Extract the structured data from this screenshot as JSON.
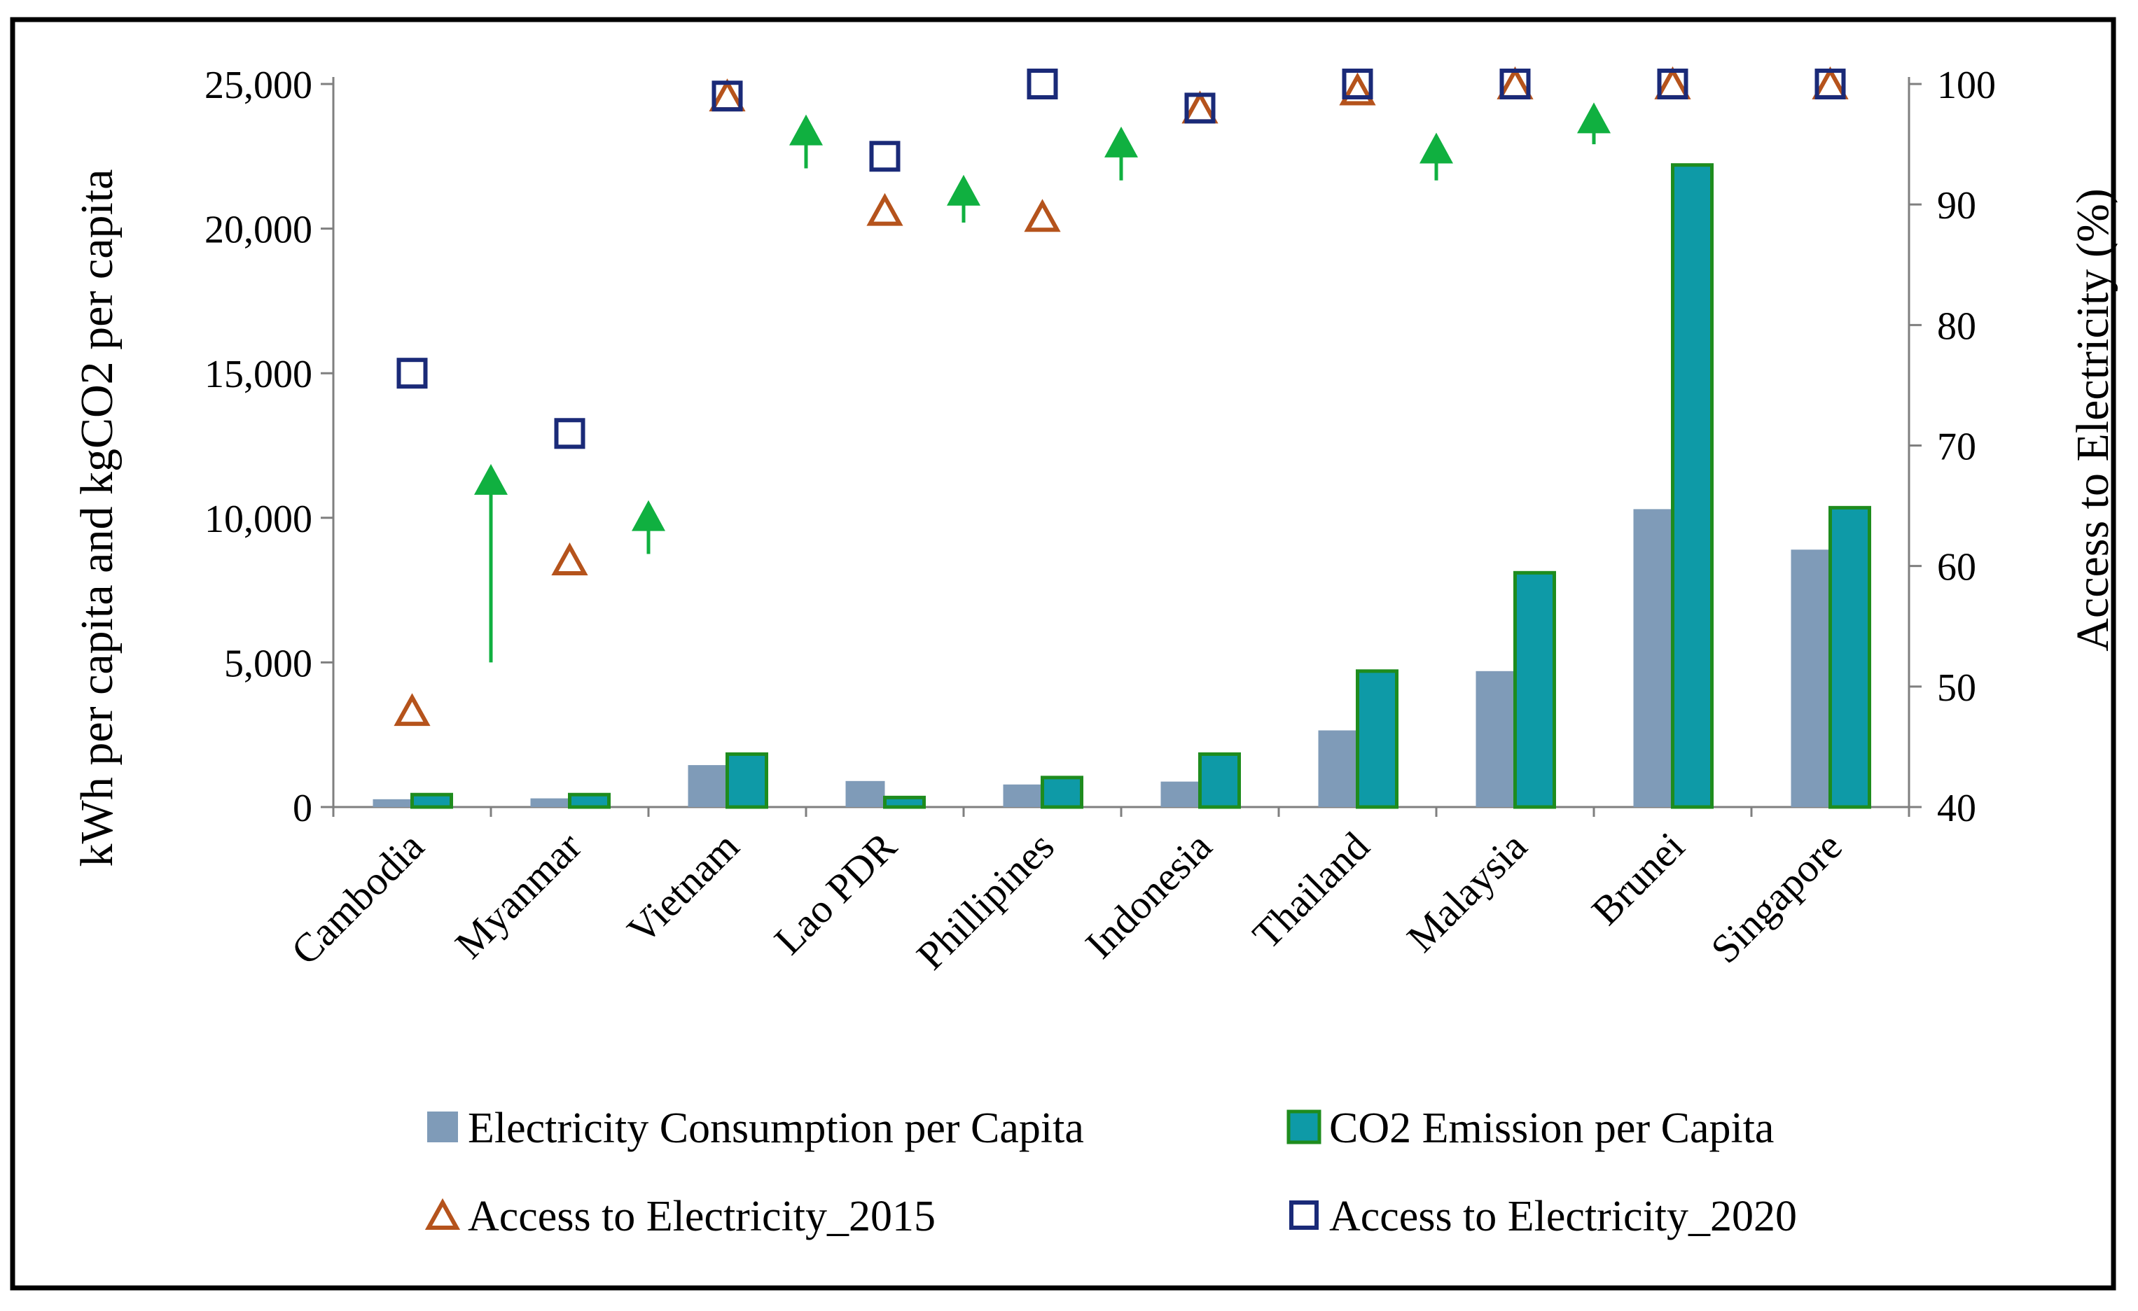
{
  "chart_data": {
    "type": "bar",
    "categories": [
      "Cambodia",
      "Myanmar",
      "Vietnam",
      "Lao PDR",
      "Phillipines",
      "Indonesia",
      "Thailand",
      "Malaysia",
      "Brunei",
      "Singapore"
    ],
    "left_axis": {
      "label": "kWh per capita and kgCO2 per capita",
      "ylim": [
        0,
        25000
      ],
      "ticks": [
        0,
        5000,
        10000,
        15000,
        20000,
        25000
      ],
      "tick_labels": [
        "0",
        "5,000",
        "10,000",
        "15,000",
        "20,000",
        "25,000"
      ]
    },
    "right_axis": {
      "label": "Access to Electricity (%)",
      "ylim": [
        40,
        100
      ],
      "ticks": [
        40,
        50,
        60,
        70,
        80,
        90,
        100
      ],
      "tick_labels": [
        "40",
        "50",
        "60",
        "70",
        "80",
        "90",
        "100"
      ]
    },
    "series": [
      {
        "name": "Electricity Consumption per Capita",
        "kind": "bar",
        "axis": "left",
        "color": "#7f9bb8",
        "values": [
          270,
          300,
          1450,
          900,
          780,
          880,
          2650,
          4700,
          10300,
          8900
        ]
      },
      {
        "name": "CO2 Emission per Capita",
        "kind": "bar",
        "axis": "left",
        "color": "#0e9aa7",
        "edge": "#1e8c1e",
        "values": [
          430,
          430,
          1830,
          330,
          1020,
          1830,
          4700,
          8100,
          22200,
          10350
        ]
      },
      {
        "name": "Access to Electricity_2015",
        "kind": "marker-triangle",
        "axis": "right",
        "color": "#b5531c",
        "values": [
          48,
          60.5,
          99,
          89.5,
          89,
          98,
          99.5,
          100,
          100,
          100
        ]
      },
      {
        "name": "Access to Electricity_2020",
        "kind": "marker-square",
        "axis": "right",
        "color": "#1a2a78",
        "values": [
          76,
          71,
          99,
          94,
          100,
          98,
          100,
          100,
          100,
          100
        ]
      }
    ],
    "arrows": {
      "color": "#10b040",
      "items": [
        {
          "between": [
            0,
            1
          ],
          "from": 52,
          "to": 68
        },
        {
          "between": [
            1,
            2
          ],
          "from": 61,
          "to": 65
        },
        {
          "between": [
            2,
            3
          ],
          "from": 93,
          "to": 97
        },
        {
          "between": [
            3,
            4
          ],
          "from": 88.5,
          "to": 92
        },
        {
          "between": [
            4,
            5
          ],
          "from": 92,
          "to": 96
        },
        {
          "between": [
            6,
            7
          ],
          "from": 92,
          "to": 95.5
        },
        {
          "between": [
            7,
            8
          ],
          "from": 95,
          "to": 98
        }
      ]
    },
    "legend": {
      "placement": "bottom",
      "items": [
        {
          "label": "Electricity Consumption per Capita",
          "type": "bar-blue"
        },
        {
          "label": "CO2 Emission per Capita",
          "type": "bar-teal"
        },
        {
          "label": "Access to Electricity_2015",
          "type": "triangle"
        },
        {
          "label": "Access to Electricity_2020",
          "type": "square"
        }
      ]
    }
  }
}
